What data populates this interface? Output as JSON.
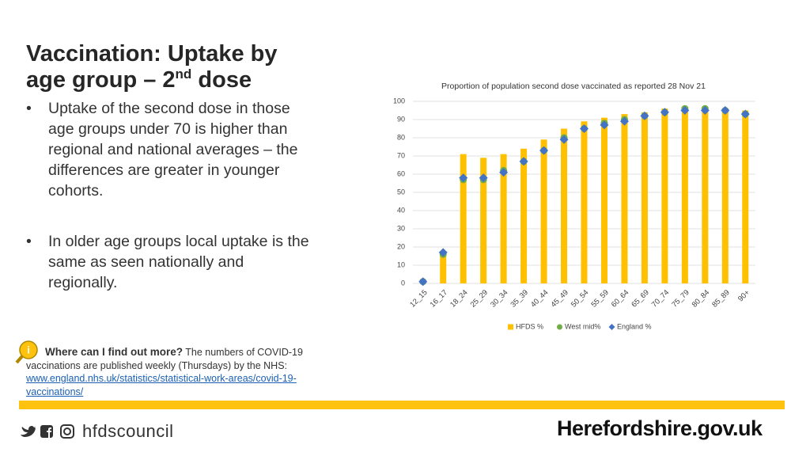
{
  "header": {
    "title_line1": "Vaccination: Uptake by",
    "title_line2": "age group – 2",
    "title_sup": "nd",
    "title_end": " dose"
  },
  "bullets": [
    "Uptake of the second dose in those age groups under 70 is higher than regional and national averages – the differences are greater in younger cohorts.",
    "In older age groups local uptake is the same as seen nationally and regionally."
  ],
  "info": {
    "heading": "Where can I find out more?",
    "text": " The numbers of COVID-19 vaccinations are published weekly (Thursdays) by the NHS:",
    "link": "www.england.nhs.uk/statistics/statistical-work-areas/covid-19-vaccinations/"
  },
  "footer": {
    "social": "hfdscouncil",
    "site": "Herefordshire.gov.uk"
  },
  "chart_data": {
    "type": "bar",
    "title": "Proportion of population second dose vaccinated as reported 28 Nov 21",
    "categories": [
      "12_15",
      "16_17",
      "18_24",
      "25_29",
      "30_34",
      "35_39",
      "40_44",
      "45_49",
      "50_54",
      "55_59",
      "60_64",
      "65_69",
      "70_74",
      "75_79",
      "80_84",
      "85_89",
      "90+"
    ],
    "series": [
      {
        "name": "HFDS %",
        "color": "#ffc000",
        "marker": "bar",
        "values": [
          1,
          16,
          71,
          69,
          71,
          74,
          79,
          85,
          89,
          91,
          93,
          94,
          96,
          97,
          97,
          96,
          95
        ]
      },
      {
        "name": "West mid%",
        "color": "#70ad47",
        "marker": "circle",
        "values": [
          1,
          16,
          57,
          57,
          62,
          67,
          73,
          80,
          85,
          88,
          90,
          92,
          94,
          96,
          96,
          95,
          93
        ]
      },
      {
        "name": "England %",
        "color": "#4472c4",
        "marker": "diamond",
        "values": [
          1,
          17,
          58,
          58,
          61,
          67,
          73,
          79,
          85,
          87,
          89,
          92,
          94,
          95,
          95,
          95,
          93
        ]
      }
    ],
    "ylim": [
      0,
      100
    ],
    "yticks": [
      0,
      10,
      20,
      30,
      40,
      50,
      60,
      70,
      80,
      90,
      100
    ],
    "grid": true,
    "legend": "bottom"
  }
}
